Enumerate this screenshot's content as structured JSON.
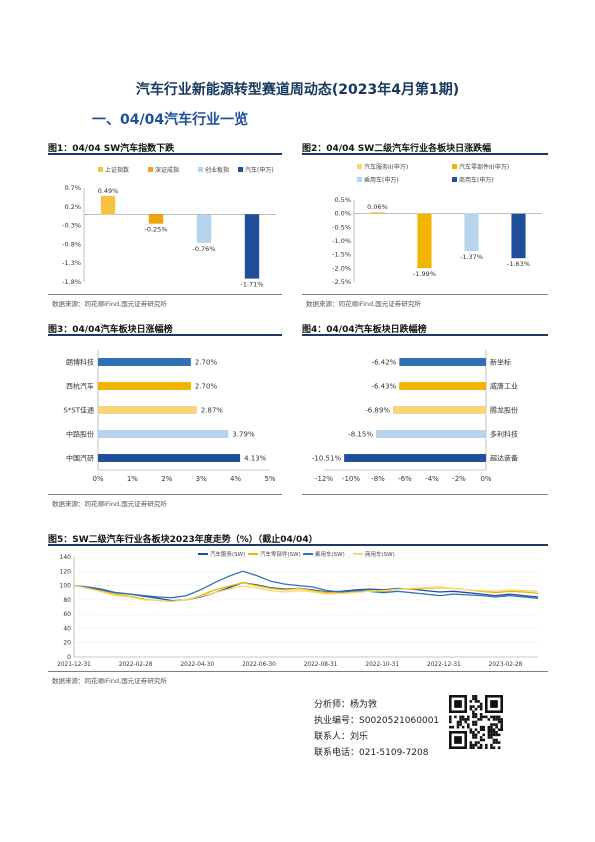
{
  "page": {
    "title": "汽车行业新能源转型赛道周动态(2023年4月第1期)",
    "section": "一、04/04汽车行业一览"
  },
  "figures": [
    {
      "title": "图1：04/04 SW汽车指数下跌",
      "source": "数据来源：同花顺iFind,国元证券研究所"
    },
    {
      "title": "图2：04/04 SW二级汽车行业各板块日涨跌幅",
      "source": "数据来源：同花顺iFind,国元证券研究所"
    },
    {
      "title": "图3：04/04汽车板块日涨幅榜",
      "source": "数据来源：同花顺iFind,国元证券研究所"
    },
    {
      "title": "图4：04/04汽车板块日跌幅榜",
      "source": ""
    },
    {
      "title": "图5：SW二级汽车行业各板块2023年度走势（%）（截止04/04）",
      "source": "数据来源：同花顺iFind,国元证券研究所"
    }
  ],
  "contact": {
    "analyst": "分析师：杨为敩",
    "license": "执业编号：S0020521060001",
    "contact_person": "联系人：刘乐",
    "phone": "联系电话：021-5109-7208"
  },
  "chart_data": [
    {
      "type": "bar",
      "categories": [
        "上证指数",
        "深证成指",
        "创业板指",
        "汽车(申万)"
      ],
      "values": [
        0.49,
        -0.25,
        -0.76,
        -1.71
      ],
      "labels": [
        "0.49%",
        "-0.25%",
        "-0.76%",
        "-1.71%"
      ],
      "colors": [
        "#f5c242",
        "#f0a30a",
        "#b8d3ee",
        "#1f4e9a"
      ],
      "ylim": [
        -1.8,
        0.7
      ],
      "yticks": [
        "0.7%",
        "0.2%",
        "-0.3%",
        "-0.8%",
        "-1.3%",
        "-1.8%"
      ],
      "ytick_values": [
        0.7,
        0.2,
        -0.3,
        -0.8,
        -1.3,
        -1.8
      ],
      "legend": "top"
    },
    {
      "type": "bar",
      "categories": [
        "汽车服务II(申万)",
        "汽车零部件II(申万)",
        "乘用车(申万)",
        "商用车(申万)"
      ],
      "values": [
        0.06,
        -1.99,
        -1.37,
        -1.63
      ],
      "labels": [
        "0.06%",
        "-1.99%",
        "-1.37%",
        "-1.63%"
      ],
      "colors": [
        "#f5d67a",
        "#f0b400",
        "#b8d3ee",
        "#1f4e9a"
      ],
      "ylim": [
        -2.5,
        0.5
      ],
      "yticks": [
        "0.5%",
        "0.0%",
        "-0.5%",
        "-1.0%",
        "-1.5%",
        "-2.0%",
        "-2.5%"
      ],
      "ytick_values": [
        0.5,
        0.0,
        -0.5,
        -1.0,
        -1.5,
        -2.0,
        -2.5
      ],
      "legend": "top"
    },
    {
      "type": "bar",
      "orientation": "horizontal",
      "categories": [
        "朗博科技",
        "西杭汽车",
        "S*ST佳通",
        "中路股份",
        "中国汽研"
      ],
      "values": [
        2.7,
        2.7,
        2.87,
        3.79,
        4.13
      ],
      "labels": [
        "2.70%",
        "2.70%",
        "2.87%",
        "3.79%",
        "4.13%"
      ],
      "colors": [
        "#2e6fb6",
        "#f0b400",
        "#f5d67a",
        "#b8d3ee",
        "#1f4e9a"
      ],
      "xlim": [
        0,
        5
      ],
      "xticks": [
        "0%",
        "1%",
        "2%",
        "3%",
        "4%",
        "5%"
      ],
      "xtick_values": [
        0,
        1,
        2,
        3,
        4,
        5
      ]
    },
    {
      "type": "bar",
      "orientation": "horizontal",
      "categories": [
        "新坐标",
        "威唐工业",
        "腾龙股份",
        "多利科技",
        "超达装备"
      ],
      "values": [
        -6.42,
        -6.43,
        -6.89,
        -8.15,
        -10.51
      ],
      "labels": [
        "-6.42%",
        "-6.43%",
        "-6.89%",
        "-8.15%",
        "-10.51%"
      ],
      "colors": [
        "#2e6fb6",
        "#f0b400",
        "#f5d67a",
        "#b8d3ee",
        "#1f4e9a"
      ],
      "xlim": [
        -12,
        0
      ],
      "xticks": [
        "-12%",
        "-10%",
        "-8%",
        "-6%",
        "-4%",
        "-2%",
        "0%"
      ],
      "xtick_values": [
        -12,
        -10,
        -8,
        -6,
        -4,
        -2,
        0
      ]
    },
    {
      "type": "line",
      "x_ticks": [
        "2021-12-31",
        "2022-02-28",
        "2022-04-30",
        "2022-06-30",
        "2022-08-31",
        "2022-10-31",
        "2022-12-31",
        "2023-02-28"
      ],
      "ylim": [
        0,
        140
      ],
      "yticks": [
        "0",
        "20",
        "40",
        "60",
        "80",
        "100",
        "120",
        "140"
      ],
      "ytick_values": [
        0,
        20,
        40,
        60,
        80,
        100,
        120,
        140
      ],
      "legend": "top",
      "series": [
        {
          "name": "汽车服务(SW)",
          "color": "#1f4e9a",
          "values": [
            100,
            97,
            93,
            90,
            88,
            85,
            82,
            79,
            80,
            84,
            90,
            97,
            104,
            101,
            97,
            95,
            96,
            94,
            91,
            92,
            94,
            95,
            94,
            96,
            95,
            93,
            91,
            92,
            90,
            88,
            86,
            88,
            86,
            84
          ]
        },
        {
          "name": "汽车零部件(SW)",
          "color": "#f0b400",
          "values": [
            100,
            96,
            92,
            88,
            85,
            81,
            79,
            78,
            80,
            86,
            94,
            99,
            104,
            100,
            96,
            94,
            96,
            93,
            90,
            90,
            92,
            93,
            92,
            95,
            95,
            96,
            97,
            96,
            94,
            92,
            90,
            92,
            91,
            89
          ]
        },
        {
          "name": "乘用车(SW)",
          "color": "#2e75b6",
          "values": [
            100,
            98,
            95,
            90,
            88,
            86,
            84,
            83,
            86,
            94,
            104,
            113,
            120,
            114,
            106,
            102,
            100,
            98,
            93,
            91,
            93,
            92,
            90,
            92,
            90,
            88,
            86,
            88,
            87,
            86,
            84,
            86,
            84,
            82
          ]
        },
        {
          "name": "商用车(SW)",
          "color": "#f7d77a",
          "values": [
            100,
            96,
            91,
            86,
            84,
            80,
            79,
            78,
            80,
            85,
            90,
            95,
            99,
            97,
            93,
            91,
            93,
            91,
            88,
            89,
            90,
            92,
            93,
            95,
            96,
            97,
            98,
            96,
            94,
            93,
            92,
            94,
            93,
            92
          ]
        }
      ]
    }
  ]
}
